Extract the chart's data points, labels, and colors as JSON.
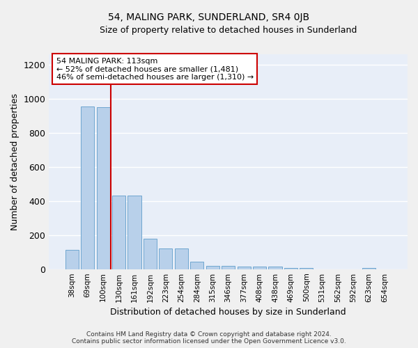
{
  "title": "54, MALING PARK, SUNDERLAND, SR4 0JB",
  "subtitle": "Size of property relative to detached houses in Sunderland",
  "xlabel": "Distribution of detached houses by size in Sunderland",
  "ylabel": "Number of detached properties",
  "categories": [
    "38sqm",
    "69sqm",
    "100sqm",
    "130sqm",
    "161sqm",
    "192sqm",
    "223sqm",
    "254sqm",
    "284sqm",
    "315sqm",
    "346sqm",
    "377sqm",
    "408sqm",
    "438sqm",
    "469sqm",
    "500sqm",
    "531sqm",
    "562sqm",
    "592sqm",
    "623sqm",
    "654sqm"
  ],
  "values": [
    115,
    955,
    950,
    430,
    430,
    180,
    120,
    120,
    45,
    20,
    20,
    15,
    15,
    15,
    8,
    8,
    0,
    0,
    0,
    8,
    0
  ],
  "bar_color": "#b8d0ea",
  "bar_edgecolor": "#6ea6d0",
  "background_color": "#e8eef8",
  "grid_color": "#ffffff",
  "vline_x": 2.5,
  "vline_color": "#cc0000",
  "annotation_text": "54 MALING PARK: 113sqm\n← 52% of detached houses are smaller (1,481)\n46% of semi-detached houses are larger (1,310) →",
  "annotation_box_color": "#ffffff",
  "annotation_box_edgecolor": "#cc0000",
  "ylim": [
    0,
    1260
  ],
  "yticks": [
    0,
    200,
    400,
    600,
    800,
    1000,
    1200
  ],
  "fig_bg_color": "#f0f0f0",
  "footer_line1": "Contains HM Land Registry data © Crown copyright and database right 2024.",
  "footer_line2": "Contains public sector information licensed under the Open Government Licence v3.0."
}
